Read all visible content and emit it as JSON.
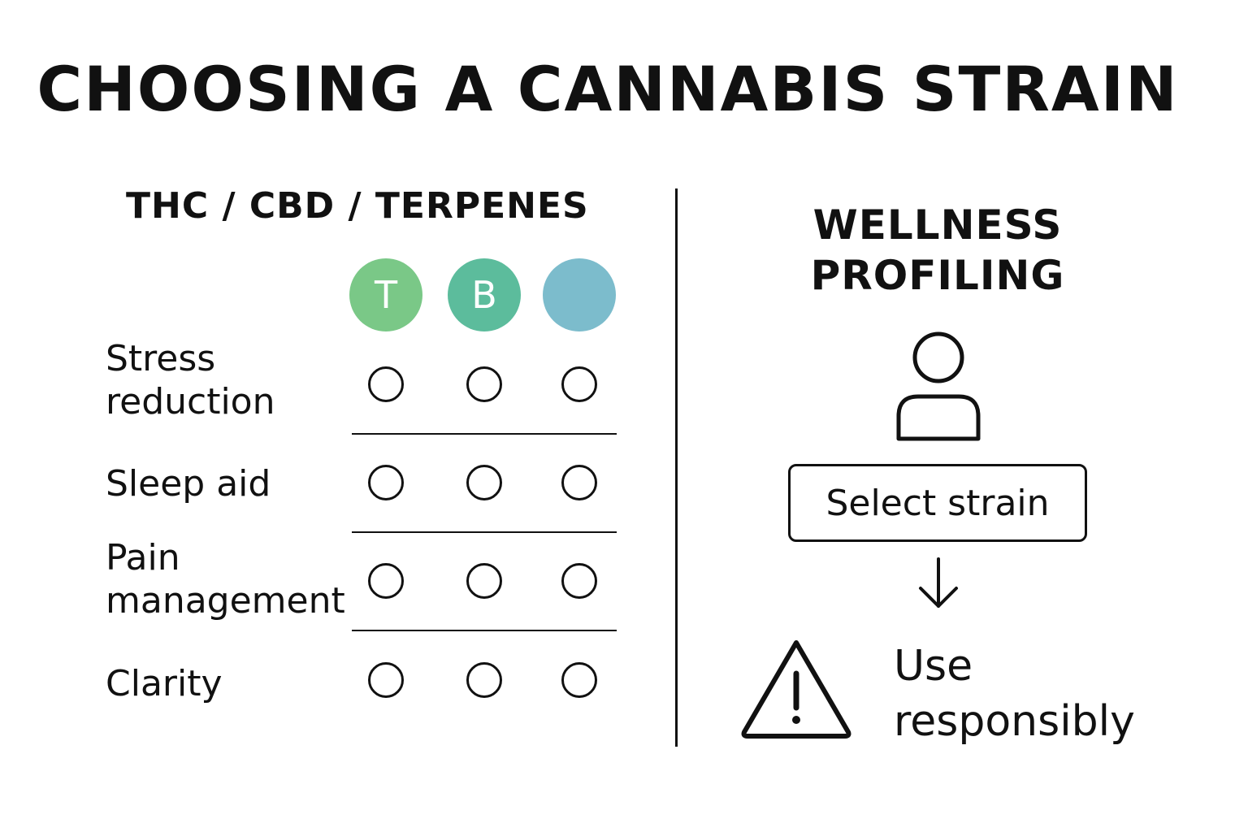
{
  "title": "CHOOSING A CANNABIS STRAIN",
  "left_panel": {
    "heading": "THC / CBD / TERPENES",
    "columns": [
      {
        "letter": "T",
        "color": "#7ac887"
      },
      {
        "letter": "B",
        "color": "#5cbc9c"
      },
      {
        "letter": "",
        "color": "#7cbccc"
      }
    ],
    "rows": [
      {
        "label_line1": "Stress",
        "label_line2": "reduction"
      },
      {
        "label_line1": "Sleep aid",
        "label_line2": ""
      },
      {
        "label_line1": "Pain",
        "label_line2": "management"
      },
      {
        "label_line1": "Clarity",
        "label_line2": ""
      }
    ]
  },
  "right_panel": {
    "heading_line1": "WELLNESS",
    "heading_line2": "PROFILING",
    "profile_icon": "user-icon",
    "select_button_label": "Select strain",
    "arrow_icon": "arrow-down-icon",
    "warning_icon": "warning-triangle-icon",
    "warning_line1": "Use",
    "warning_line2": "responsibly"
  }
}
